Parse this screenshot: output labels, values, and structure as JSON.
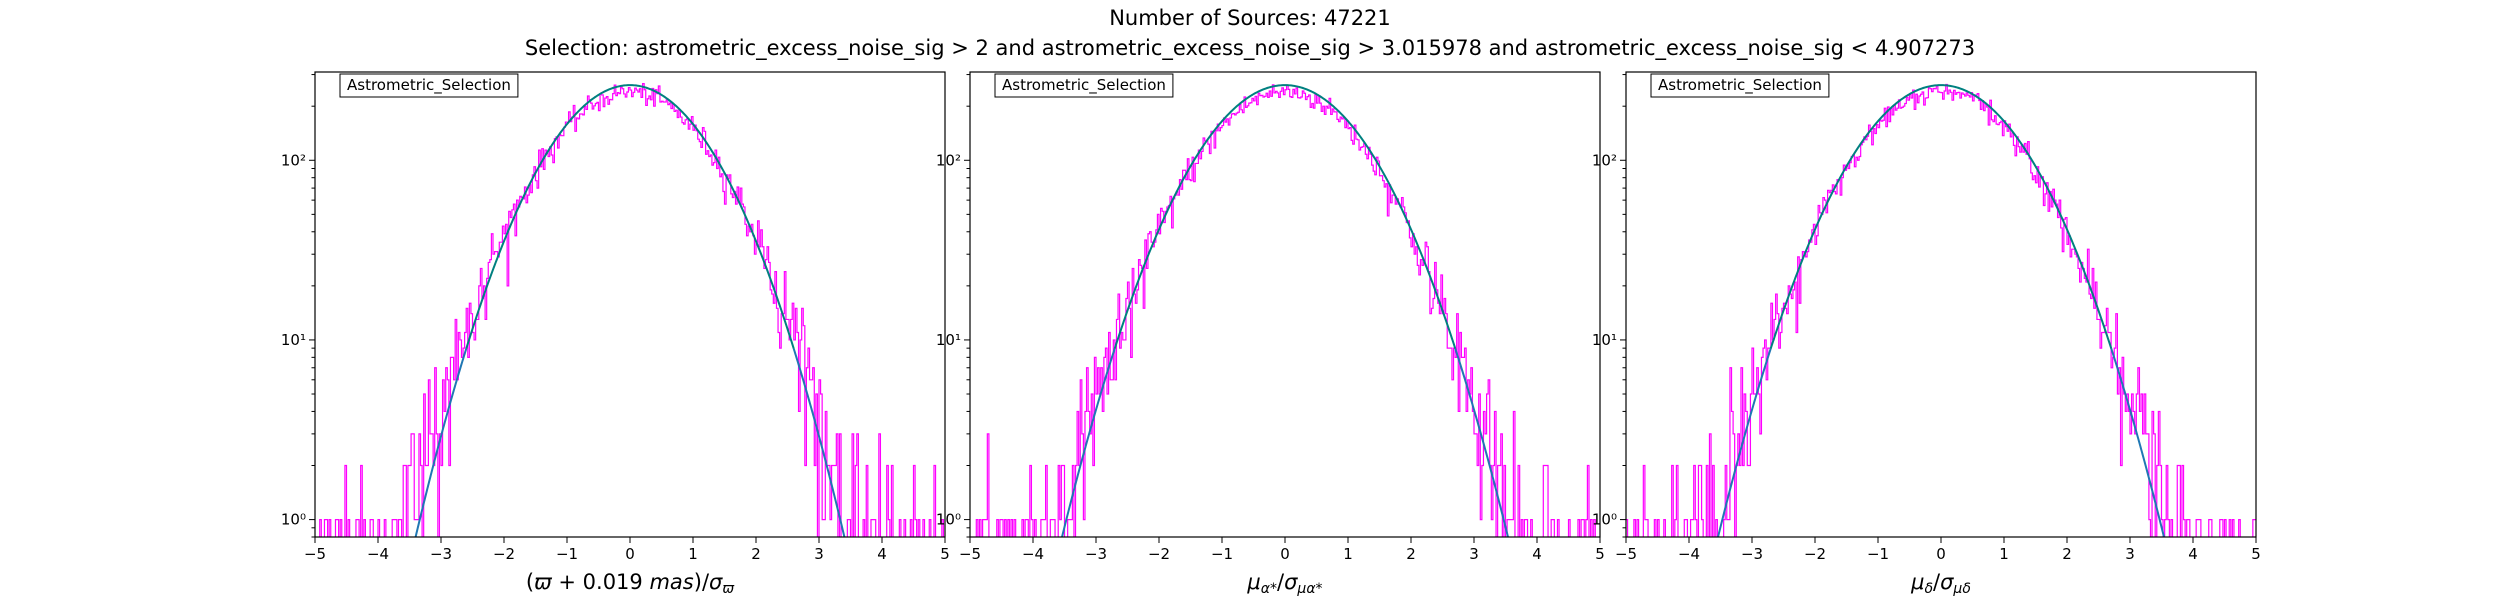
{
  "figure": {
    "title_line1": "Number of Sources: 47221",
    "title_line2": "Selection: astrometric_excess_noise_sig > 2 and astrometric_excess_noise_sig > 3.015978 and astrometric_excess_noise_sig < 4.907273"
  },
  "colors": {
    "histogram": "#ff00ff",
    "model_curve": "#008080",
    "model_curve_tail": "#1f77b4",
    "axes": "#000000"
  },
  "chart_data": [
    {
      "type": "line",
      "panel": "parallax",
      "xlabel": "(ϖ + 0.019 mas)/σϖ",
      "xlim": [
        -5,
        5
      ],
      "xticks": [
        -5,
        -4,
        -3,
        -2,
        -1,
        0,
        1,
        2,
        3,
        4,
        5
      ],
      "yscale": "log",
      "ylim": [
        0.8,
        310
      ],
      "yticks": [
        {
          "value": 1,
          "label": "10⁰"
        },
        {
          "value": 10,
          "label": "10¹"
        },
        {
          "value": 100,
          "label": "10²"
        }
      ],
      "legend": {
        "text": "Astrometric_Selection",
        "placement": "top-left"
      },
      "series": [
        {
          "kind": "histogram",
          "peak": 240,
          "sigma": 1.04,
          "center": 0.0,
          "xmin": -5,
          "xmax": 5,
          "bins": 400
        },
        {
          "kind": "gaussian",
          "peak": 262,
          "sigma": 1.0,
          "center": 0.0
        }
      ]
    },
    {
      "type": "line",
      "panel": "pmra",
      "xlabel": "μα*/σμα*",
      "xlim": [
        -5,
        5
      ],
      "xticks": [
        -5,
        -4,
        -3,
        -2,
        -1,
        0,
        1,
        2,
        3,
        4,
        5
      ],
      "yscale": "log",
      "ylim": [
        0.8,
        310
      ],
      "yticks": [
        {
          "value": 1,
          "label": "10⁰"
        },
        {
          "value": 10,
          "label": "10¹"
        },
        {
          "value": 100,
          "label": "10²"
        }
      ],
      "legend": {
        "text": "Astrometric_Selection",
        "placement": "top-left"
      },
      "series": [
        {
          "kind": "histogram",
          "peak": 240,
          "sigma": 1.06,
          "center": 0.0,
          "xmin": -5,
          "xmax": 5,
          "bins": 400
        },
        {
          "kind": "gaussian",
          "peak": 262,
          "sigma": 1.04,
          "center": 0.0
        }
      ]
    },
    {
      "type": "line",
      "panel": "pmdec",
      "xlabel": "μδ/σμδ",
      "xlim": [
        -5,
        5
      ],
      "xticks": [
        -5,
        -4,
        -3,
        -2,
        -1,
        0,
        1,
        2,
        3,
        4,
        5
      ],
      "yscale": "log",
      "ylim": [
        0.8,
        310
      ],
      "yticks": [
        {
          "value": 1,
          "label": "10⁰"
        },
        {
          "value": 10,
          "label": "10¹"
        },
        {
          "value": 100,
          "label": "10²"
        }
      ],
      "legend": {
        "text": "Astrometric_Selection",
        "placement": "top-left"
      },
      "series": [
        {
          "kind": "histogram",
          "peak": 240,
          "sigma": 1.06,
          "center": 0.0,
          "xmin": -5,
          "xmax": 5,
          "bins": 400
        },
        {
          "kind": "gaussian",
          "peak": 262,
          "sigma": 1.04,
          "center": 0.0
        }
      ]
    }
  ]
}
